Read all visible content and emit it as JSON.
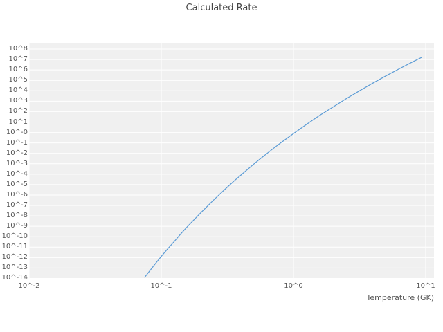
{
  "chart_data": {
    "type": "line",
    "title": "Calculated Rate",
    "xlabel": "Temperature (GK)",
    "ylabel": "",
    "x_scale": "log",
    "y_scale": "log",
    "grid": true,
    "legend": false,
    "x_tick_labels": [
      "10^-2",
      "10^-1",
      "10^0",
      "10^1"
    ],
    "x_tick_values": [
      -2,
      -1,
      0,
      1
    ],
    "y_tick_labels": [
      "10^8",
      "10^7",
      "10^6",
      "10^5",
      "10^4",
      "10^3",
      "10^2",
      "10^1",
      "10^-0",
      "10^-1",
      "10^-2",
      "10^-3",
      "10^-4",
      "10^-5",
      "10^-6",
      "10^-7",
      "10^-8",
      "10^-9",
      "10^-10",
      "10^-11",
      "10^-12",
      "10^-13",
      "10^-14"
    ],
    "y_tick_values": [
      8,
      7,
      6,
      5,
      4,
      3,
      2,
      1,
      0,
      -1,
      -2,
      -3,
      -4,
      -5,
      -6,
      -7,
      -8,
      -9,
      -10,
      -11,
      -12,
      -13,
      -14
    ],
    "xlim_log": [
      -2,
      1.063
    ],
    "ylim_log": [
      -14.1,
      8.6
    ],
    "series": [
      {
        "name": "calculated-rate",
        "temperature": [
          0.075,
          0.089,
          0.1,
          0.112,
          0.126,
          0.141,
          0.158,
          0.178,
          0.2,
          0.224,
          0.251,
          0.282,
          0.316,
          0.355,
          0.398,
          0.447,
          0.501,
          0.562,
          0.631,
          0.708,
          0.794,
          0.891,
          1.0,
          1.26,
          1.58,
          2.0,
          2.51,
          3.16,
          3.98,
          5.01,
          6.31,
          7.94,
          9.33
        ],
        "rate": [
          1.3e-14,
          2.1e-13,
          1.3e-12,
          7.1e-12,
          3.8e-11,
          2e-10,
          9.7e-10,
          4.6e-09,
          2.1e-08,
          8.9e-08,
          3.7e-07,
          1.5e-06,
          5.8e-06,
          2.2e-05,
          7.8e-05,
          0.00027,
          0.00093,
          0.0031,
          0.0098,
          0.031,
          0.093,
          0.27,
          0.79,
          6.2,
          44,
          290,
          1770,
          10000.0,
          54000.0,
          270000.0,
          1300000.0,
          5800000.0,
          16000000.0
        ]
      }
    ]
  },
  "colors": {
    "line": "#5b9bd5",
    "plot_bg": "#f0f0f0",
    "grid": "#ffffff",
    "text": "#555555",
    "title": "#444444"
  }
}
